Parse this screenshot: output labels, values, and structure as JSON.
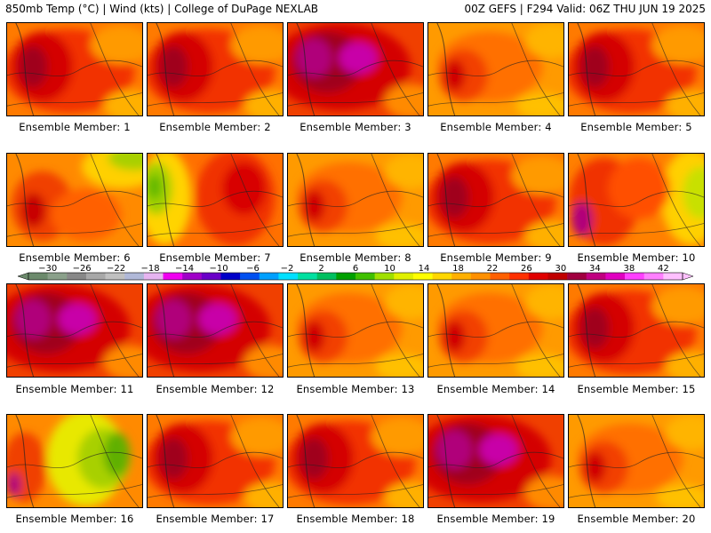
{
  "header": {
    "left": "850mb Temp (°C) | Wind (kts) | College of DuPage NEXLAB",
    "right": "00Z GEFS | F294 Valid: 06Z THU JUN 19 2025"
  },
  "member_label_prefix": "Ensemble Member:",
  "members": [
    {
      "id": 1,
      "scheme": "hot",
      "label": "Ensemble Member: 1"
    },
    {
      "id": 2,
      "scheme": "hot",
      "label": "Ensemble Member: 2"
    },
    {
      "id": 3,
      "scheme": "vhot",
      "label": "Ensemble Member: 3"
    },
    {
      "id": 4,
      "scheme": "warm",
      "label": "Ensemble Member: 4"
    },
    {
      "id": 5,
      "scheme": "hot",
      "label": "Ensemble Member: 5"
    },
    {
      "id": 6,
      "scheme": "warmN",
      "label": "Ensemble Member: 6"
    },
    {
      "id": 7,
      "scheme": "coolW",
      "label": "Ensemble Member: 7"
    },
    {
      "id": 8,
      "scheme": "warm",
      "label": "Ensemble Member: 8"
    },
    {
      "id": 9,
      "scheme": "hot",
      "label": "Ensemble Member: 9"
    },
    {
      "id": 10,
      "scheme": "coolE",
      "label": "Ensemble Member: 10"
    },
    {
      "id": 11,
      "scheme": "vhot",
      "label": "Ensemble Member: 11"
    },
    {
      "id": 12,
      "scheme": "vhot",
      "label": "Ensemble Member: 12"
    },
    {
      "id": 13,
      "scheme": "warm",
      "label": "Ensemble Member: 13"
    },
    {
      "id": 14,
      "scheme": "warm",
      "label": "Ensemble Member: 14"
    },
    {
      "id": 15,
      "scheme": "hot",
      "label": "Ensemble Member: 15"
    },
    {
      "id": 16,
      "scheme": "cool",
      "label": "Ensemble Member: 16"
    },
    {
      "id": 17,
      "scheme": "hot",
      "label": "Ensemble Member: 17"
    },
    {
      "id": 18,
      "scheme": "hot",
      "label": "Ensemble Member: 18"
    },
    {
      "id": 19,
      "scheme": "vhot",
      "label": "Ensemble Member: 19"
    },
    {
      "id": 20,
      "scheme": "warm",
      "label": "Ensemble Member: 20"
    }
  ],
  "colorbar": {
    "labels": [
      -30,
      -26,
      -22,
      -18,
      -14,
      -10,
      -6,
      -2,
      2,
      6,
      10,
      14,
      18,
      22,
      26,
      30,
      34,
      38,
      42
    ],
    "colors": [
      "#6c8a6c",
      "#8aa08a",
      "#888888",
      "#a8a8a8",
      "#c0c0c0",
      "#b0b8d8",
      "#e6b4f0",
      "#f000f0",
      "#a000c8",
      "#6a00c8",
      "#0000c8",
      "#0050f0",
      "#00a0ff",
      "#00e0ff",
      "#00e0a0",
      "#00c060",
      "#00a000",
      "#40c000",
      "#a0e000",
      "#e0f000",
      "#ffff00",
      "#ffd700",
      "#ffb000",
      "#ff9000",
      "#ff6000",
      "#ff3000",
      "#e00000",
      "#c00000",
      "#a00040",
      "#c00080",
      "#e000c0",
      "#ff40ff",
      "#ff80ff",
      "#ffc0ff"
    ]
  }
}
